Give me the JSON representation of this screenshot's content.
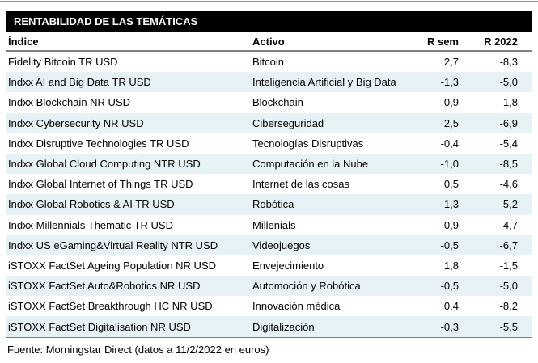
{
  "chart_data": {
    "type": "table",
    "title": "RENTABILIDAD DE LAS TEMÁTICAS",
    "columns": [
      "Índice",
      "Activo",
      "R sem",
      "R 2022"
    ],
    "rows": [
      [
        "Fidelity Bitcoin TR USD",
        "Bitcoin",
        "2,7",
        "-8,3"
      ],
      [
        "Indxx AI and Big Data TR USD",
        "Inteligencia Artificial y Big Data",
        "-1,3",
        "-5,0"
      ],
      [
        "Indxx Blockchain NR USD",
        "Blockchain",
        "0,9",
        "1,8"
      ],
      [
        "Indxx Cybersecurity NR USD",
        "Ciberseguridad",
        "2,5",
        "-6,9"
      ],
      [
        "Indxx Disruptive Technologies TR USD",
        "Tecnologías Disruptivas",
        "-0,4",
        "-5,4"
      ],
      [
        "Indxx Global Cloud Computing NTR USD",
        "Computación en la Nube",
        "-1,0",
        "-8,5"
      ],
      [
        "Indxx Global Internet of Things TR USD",
        "Internet de las cosas",
        "0,5",
        "-4,6"
      ],
      [
        "Indxx Global Robotics & AI TR USD",
        "Robótica",
        "1,3",
        "-5,2"
      ],
      [
        "Indxx Millennials Thematic TR USD",
        "Millenials",
        "-0,9",
        "-4,7"
      ],
      [
        "Indxx US eGaming&Virtual Reality NTR USD",
        "Videojuegos",
        "-0,5",
        "-6,7"
      ],
      [
        "iSTOXX FactSet Ageing Population NR USD",
        "Envejecimiento",
        "1,8",
        "-1,5"
      ],
      [
        "iSTOXX FactSet Auto&Robotics NR USD",
        "Automoción y Robótica",
        "-0,5",
        "-5,0"
      ],
      [
        "iSTOXX FactSet Breakthrough HC NR USD",
        "Innovación médica",
        "0,4",
        "-8,2"
      ],
      [
        "iSTOXX FactSet Digitalisation NR USD",
        "Digitalización",
        "-0,3",
        "-5,5"
      ]
    ],
    "source_note": "Fuente: Morningstar Direct (datos a 11/2/2022 en euros)",
    "layout": {
      "legend_position": "none",
      "grid": "zebra-stripes",
      "zebra_stripe_color": "#e7f2f7",
      "rule_color": "#808080",
      "header_bg": "#000000",
      "header_fg": "#ffffff"
    }
  }
}
